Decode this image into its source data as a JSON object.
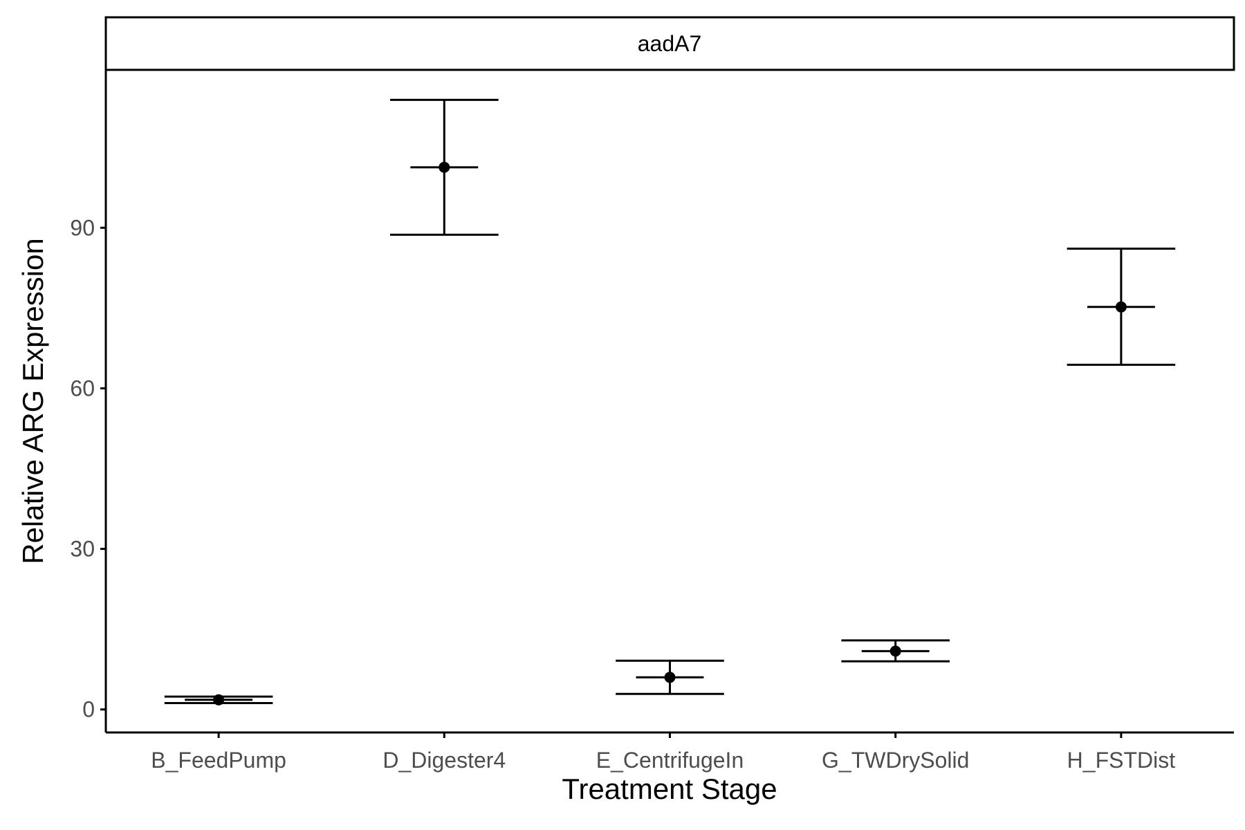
{
  "chart_data": {
    "type": "scatter",
    "subtype": "point-with-error-bars",
    "facet_label": "aadA7",
    "xlabel": "Treatment Stage",
    "ylabel": "Relative ARG Expression",
    "categories": [
      "B_FeedPump",
      "D_Digester4",
      "E_CentrifugeIn",
      "G_TWDrySolid",
      "H_FSTDist"
    ],
    "values": [
      1.8,
      101.3,
      6.0,
      10.9,
      75.2
    ],
    "error_low": [
      1.2,
      88.7,
      2.9,
      9.0,
      64.4
    ],
    "error_high": [
      2.4,
      113.9,
      9.1,
      12.9,
      86.1
    ],
    "y_ticks": [
      0,
      30,
      60,
      90
    ],
    "ylim": [
      -4.3,
      119.5
    ],
    "grid": false,
    "legend": "none",
    "colors": {
      "points": "#000000",
      "axes": "#000000",
      "tick_labels": "#4d4d4d"
    }
  }
}
